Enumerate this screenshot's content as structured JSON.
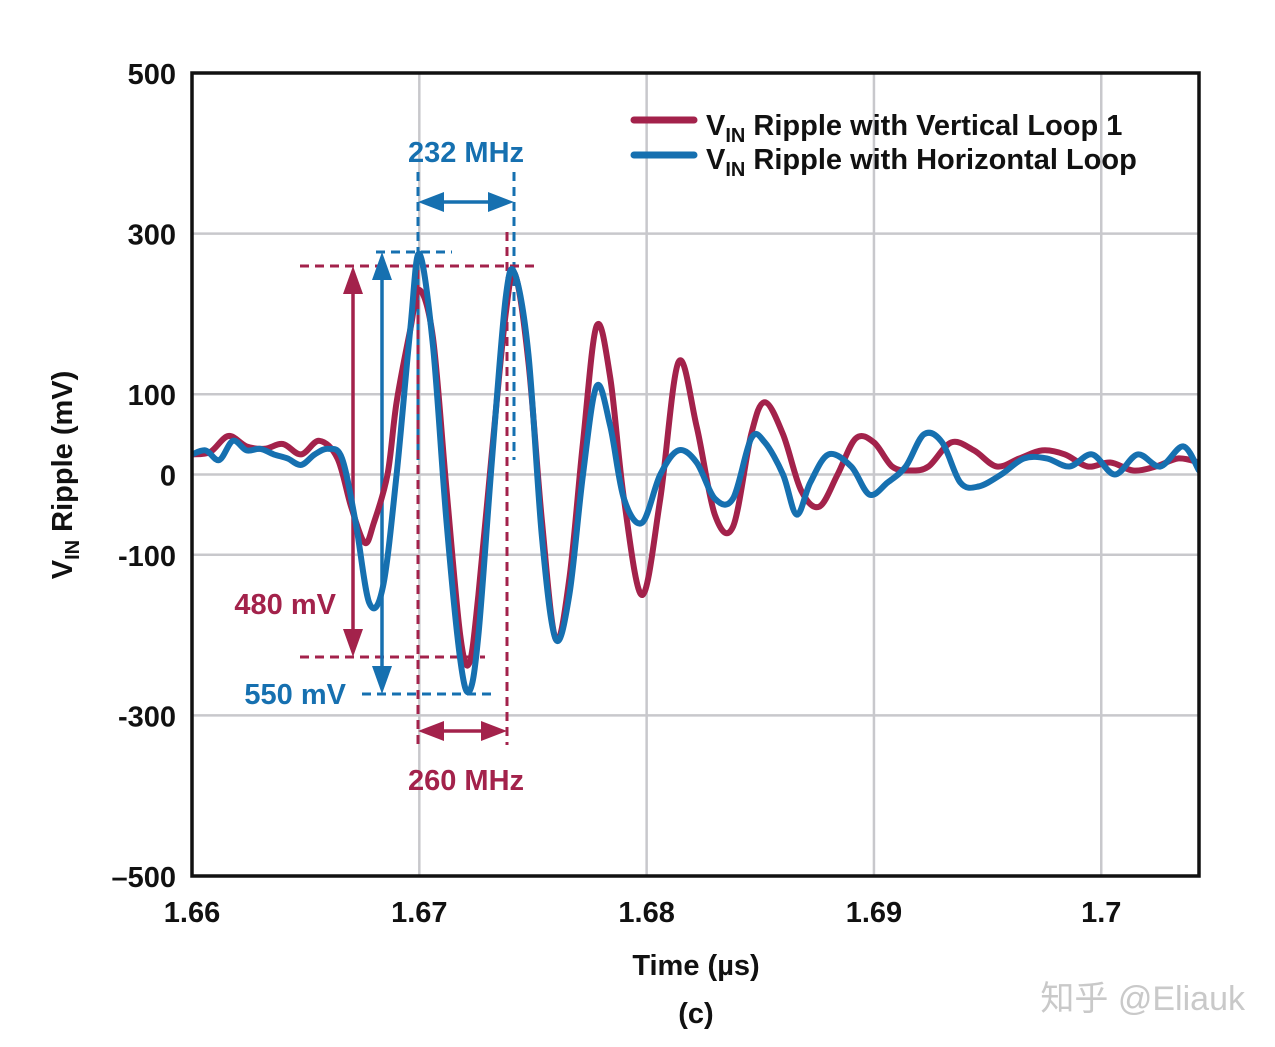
{
  "chart_data": {
    "type": "line",
    "panel_label": "(c)",
    "xlabel": "Time (µs)",
    "ylabel": {
      "main": "V",
      "sub": "IN",
      "rest": " Ripple (mV)"
    },
    "xlim": [
      1.66,
      1.7043
    ],
    "ylim": [
      -500,
      500
    ],
    "x_ticks": [
      1.66,
      1.67,
      1.68,
      1.69,
      1.7
    ],
    "x_tick_labels": [
      "1.66",
      "1.67",
      "1.68",
      "1.69",
      "1.7"
    ],
    "y_ticks": [
      500,
      300,
      100,
      0,
      -100,
      -300,
      -500
    ],
    "y_tick_labels": [
      "500",
      "300",
      "100",
      "0",
      "-100",
      "-300",
      "–500"
    ],
    "grid": true,
    "legend_position": "top-right",
    "colors": {
      "vertical": "#a3224b",
      "horizontal": "#1670b0",
      "grid": "#c8c8cc",
      "axis": "#111111"
    },
    "series": [
      {
        "name": "Vertical Loop 1",
        "legend": {
          "main": "V",
          "sub": "IN",
          "rest": " Ripple with Vertical Loop 1"
        },
        "color": "#a3224b",
        "x": [
          1.66,
          1.6608,
          1.6616,
          1.6624,
          1.6632,
          1.664,
          1.6648,
          1.6656,
          1.6664,
          1.667,
          1.6676,
          1.668,
          1.6686,
          1.669,
          1.6696,
          1.67,
          1.6706,
          1.6712,
          1.6718,
          1.6722,
          1.6726,
          1.6732,
          1.6738,
          1.6742,
          1.6748,
          1.6754,
          1.676,
          1.6766,
          1.6772,
          1.6778,
          1.6784,
          1.679,
          1.6798,
          1.6806,
          1.6814,
          1.6822,
          1.683,
          1.6838,
          1.6846,
          1.6852,
          1.686,
          1.6868,
          1.6876,
          1.6884,
          1.6892,
          1.69,
          1.6908,
          1.6916,
          1.6924,
          1.6934,
          1.6944,
          1.6954,
          1.6964,
          1.6974,
          1.6984,
          1.6994,
          1.7004,
          1.7014,
          1.7024,
          1.7034,
          1.7043
        ],
        "values": [
          25,
          28,
          48,
          35,
          32,
          38,
          25,
          42,
          20,
          -40,
          -85,
          -60,
          0,
          90,
          180,
          230,
          170,
          -20,
          -200,
          -235,
          -150,
          30,
          200,
          250,
          140,
          -60,
          -205,
          -130,
          40,
          185,
          120,
          -30,
          -150,
          -30,
          140,
          60,
          -50,
          -65,
          50,
          90,
          50,
          -20,
          -40,
          0,
          45,
          40,
          10,
          5,
          10,
          40,
          30,
          10,
          20,
          30,
          25,
          10,
          15,
          5,
          10,
          20,
          15
        ]
      },
      {
        "name": "Horizontal Loop",
        "legend": {
          "main": "V",
          "sub": "IN",
          "rest": " Ripple with Horizontal Loop"
        },
        "color": "#1670b0",
        "x": [
          1.66,
          1.6606,
          1.6612,
          1.6618,
          1.6624,
          1.663,
          1.6636,
          1.6642,
          1.6648,
          1.6654,
          1.666,
          1.6666,
          1.6672,
          1.6678,
          1.6684,
          1.669,
          1.6696,
          1.67,
          1.6706,
          1.6712,
          1.6718,
          1.6722,
          1.6726,
          1.6732,
          1.6738,
          1.6742,
          1.6748,
          1.6754,
          1.676,
          1.6766,
          1.6772,
          1.6778,
          1.6784,
          1.679,
          1.6798,
          1.6806,
          1.6814,
          1.6822,
          1.683,
          1.6838,
          1.6846,
          1.6852,
          1.686,
          1.6866,
          1.6872,
          1.688,
          1.689,
          1.6898,
          1.6906,
          1.6914,
          1.6922,
          1.693,
          1.6938,
          1.6946,
          1.6956,
          1.6966,
          1.6976,
          1.6986,
          1.6996,
          1.7006,
          1.7016,
          1.7026,
          1.7036,
          1.7043
        ],
        "values": [
          25,
          30,
          18,
          42,
          30,
          32,
          25,
          20,
          12,
          25,
          32,
          20,
          -60,
          -160,
          -140,
          0,
          180,
          275,
          160,
          -60,
          -230,
          -270,
          -200,
          20,
          220,
          250,
          150,
          -80,
          -205,
          -150,
          0,
          110,
          60,
          -30,
          -60,
          0,
          30,
          15,
          -30,
          -30,
          45,
          40,
          0,
          -50,
          -10,
          25,
          10,
          -25,
          -10,
          10,
          50,
          40,
          -10,
          -15,
          0,
          20,
          20,
          10,
          25,
          0,
          25,
          10,
          35,
          5
        ]
      }
    ],
    "annotations": {
      "freq_top": "232 MHz",
      "freq_bottom": "260 MHz",
      "pp_vertical": "480 mV",
      "pp_horizontal": "550 mV"
    }
  },
  "watermark": "知乎 @Eliauk"
}
